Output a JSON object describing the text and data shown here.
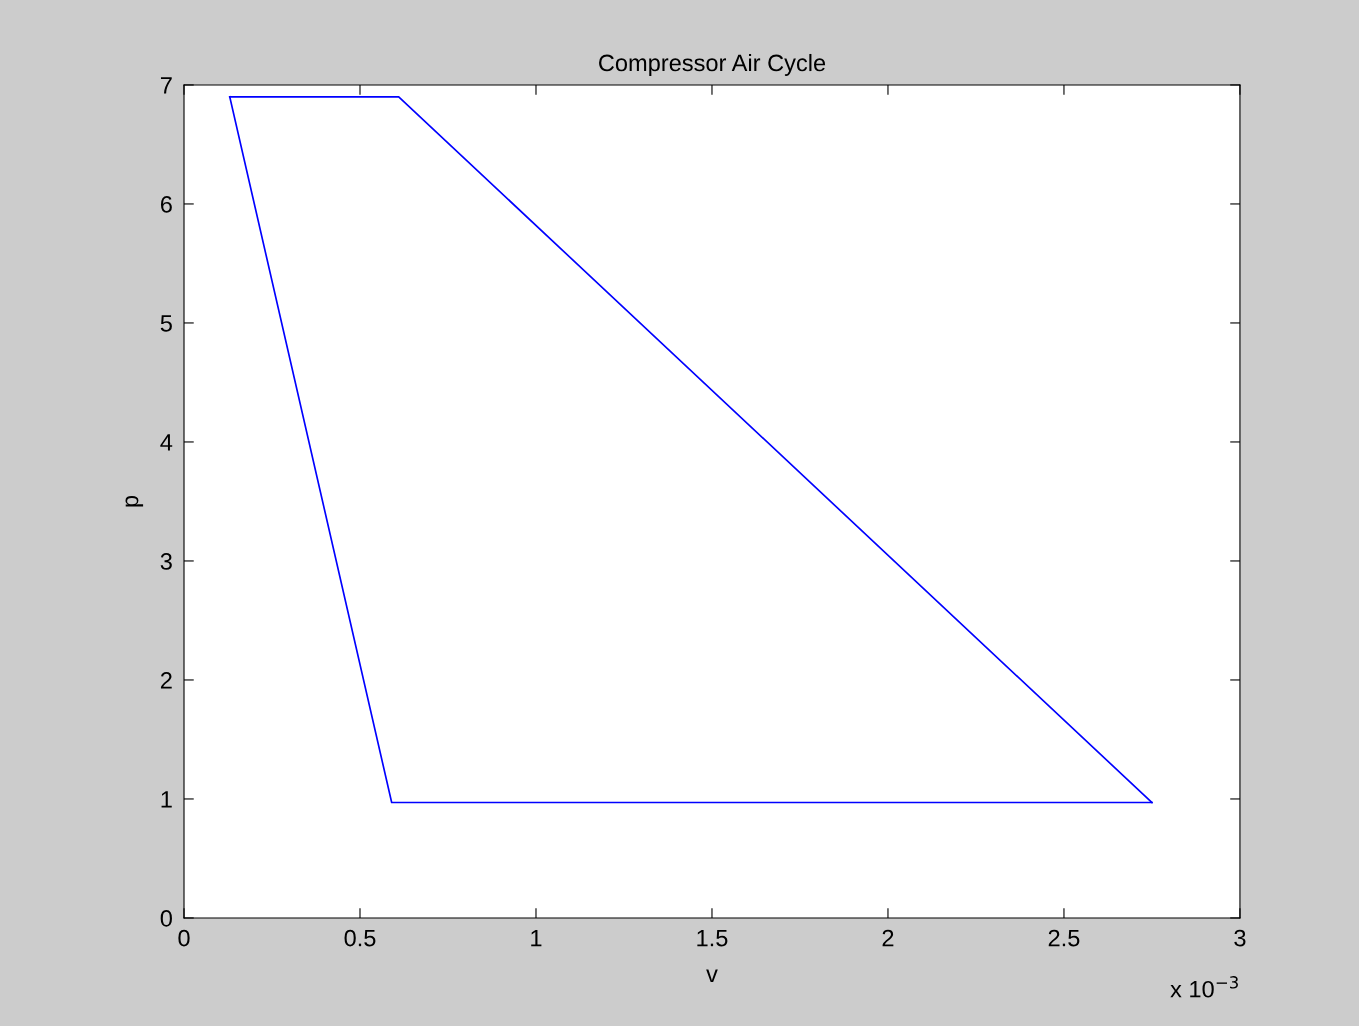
{
  "chart_data": {
    "type": "line",
    "title": "Compressor Air Cycle",
    "xlabel": "v",
    "ylabel": "p",
    "series": [
      {
        "color": "#0000ff",
        "x": [
          0.13,
          0.61,
          2.75
        ],
        "values": [
          6.9,
          6.9,
          0.97
        ]
      },
      {
        "color": "#0000ff",
        "x": [
          0.13,
          0.59,
          2.75
        ],
        "values": [
          6.9,
          0.97,
          0.97
        ]
      }
    ],
    "xlim": [
      0,
      3
    ],
    "xticks": [
      0,
      0.5,
      1,
      1.5,
      2,
      2.5,
      3
    ],
    "ylim": [
      0,
      7
    ],
    "yticks": [
      0,
      1,
      2,
      3,
      4,
      5,
      6,
      7
    ],
    "annotations": [
      "x 10$^{−3}$"
    ],
    "grid": false,
    "legend": false,
    "marker": "none",
    "line_style": "solid"
  }
}
